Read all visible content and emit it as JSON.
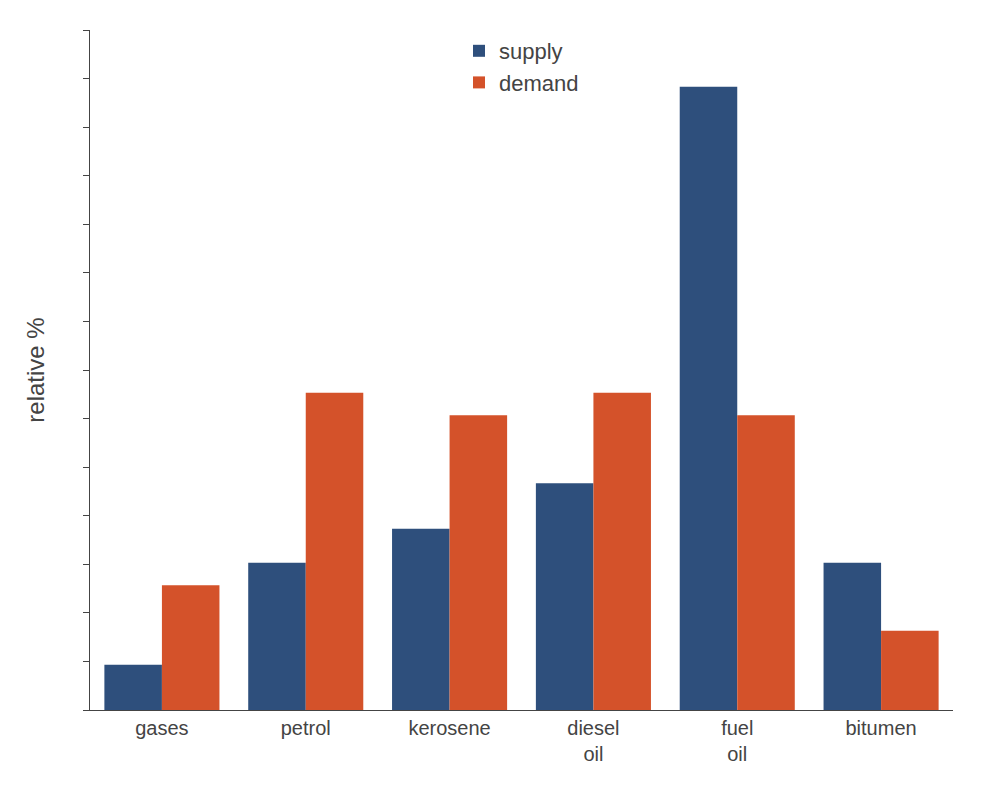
{
  "chart_data": {
    "type": "bar",
    "categories": [
      "gases",
      "petrol",
      "kerosene",
      "diesel\noil",
      "fuel\noil",
      "bitumen"
    ],
    "series": [
      {
        "name": "supply",
        "color": "#2e4f7c",
        "values": [
          4,
          13,
          16,
          20,
          55,
          13
        ]
      },
      {
        "name": "demand",
        "color": "#d4522a",
        "values": [
          11,
          28,
          26,
          28,
          26,
          7
        ]
      }
    ],
    "ylabel": "relative %",
    "ylim": [
      0,
      60
    ],
    "yticks": [
      0,
      4.285714285714286,
      8.571428571428571,
      12.857142857142858,
      17.142857142857142,
      21.428571428571427,
      25.714285714285715,
      30,
      34.285714285714285,
      38.57142857142857,
      42.857142857142854,
      47.14285714285714,
      51.42857142857143,
      55.714285714285715,
      60
    ],
    "tick_labels": "x",
    "grid": false,
    "legend": "upper center"
  }
}
